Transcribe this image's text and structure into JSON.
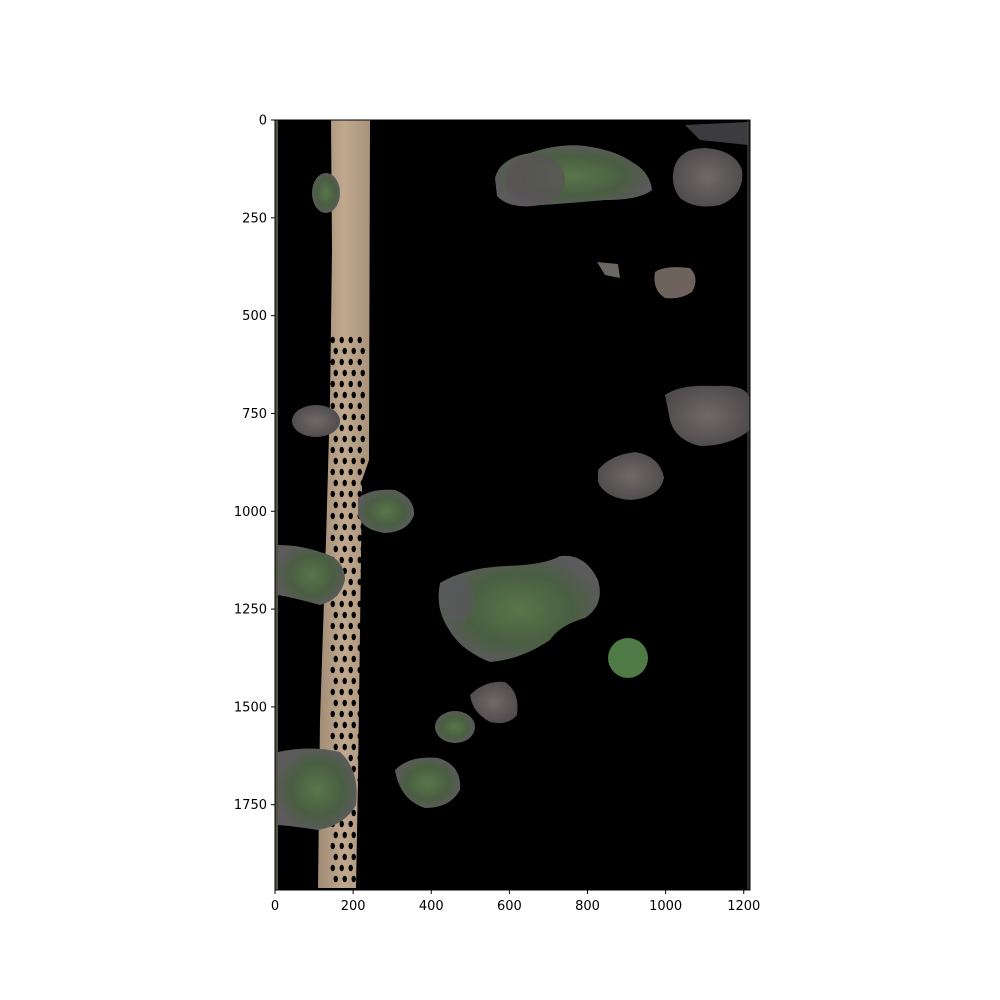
{
  "figure": {
    "type": "image",
    "description_hidden": true,
    "x_ticks": [
      0,
      200,
      400,
      600,
      800,
      1000,
      1200
    ],
    "y_ticks": [
      0,
      250,
      500,
      750,
      1000,
      1250,
      1500,
      1750
    ],
    "xlim": [
      0,
      1216
    ],
    "ylim": [
      1968,
      0
    ]
  },
  "colors": {
    "background": "#000000",
    "path": "#b59c82",
    "path_dark": "#8f7a66",
    "tree_green": "#4f6b43",
    "tree_dark": "#3e4a38",
    "tree_gray": "#6b6b70",
    "soil": "#7a6a5c"
  }
}
